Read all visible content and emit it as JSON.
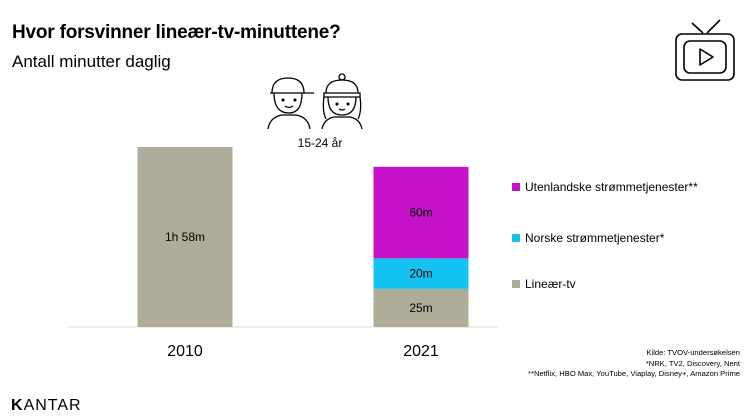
{
  "header": {
    "title": "Hvor forsvinner lineær-tv-minuttene?",
    "subtitle": "Antall minutter daglig"
  },
  "age_group": "15-24 år",
  "icons": {
    "tv": "tv-icon",
    "people": "people-icon"
  },
  "colors": {
    "linear": "#AFAC9A",
    "norwegian": "#12C3F2",
    "foreign": "#C512C8"
  },
  "chart_data": {
    "type": "bar",
    "stacked": true,
    "categories": [
      "2010",
      "2021"
    ],
    "series": [
      {
        "name": "Lineær-tv",
        "values": [
          118,
          25
        ],
        "labels": [
          "1h 58m",
          "25m"
        ]
      },
      {
        "name": "Norske strømmetjenester*",
        "values": [
          0,
          20
        ],
        "labels": [
          "",
          "20m"
        ]
      },
      {
        "name": "Utenlandske strømmetjenester**",
        "values": [
          0,
          60
        ],
        "labels": [
          "",
          "60m"
        ]
      }
    ],
    "units": "minutes",
    "ylim": [
      0,
      118
    ],
    "legend_position": "right",
    "grid": false
  },
  "legend": [
    {
      "label": "Utenlandske strømmetjenester**",
      "color": "#C512C8"
    },
    {
      "label": "Norske strømmetjenester*",
      "color": "#12C3F2"
    },
    {
      "label": "Lineær-tv",
      "color": "#AFAC9A"
    }
  ],
  "footnotes": {
    "source": "Kilde: TVOV-undersøkelsen",
    "note1": "*NRK, TV2, Discovery, Nent",
    "note2": "**Netflix, HBO Max, YouTube, Viaplay, Disney+, Amazon Prime"
  },
  "brand": {
    "logo_k": "K",
    "logo_rest": "ANTAR"
  }
}
